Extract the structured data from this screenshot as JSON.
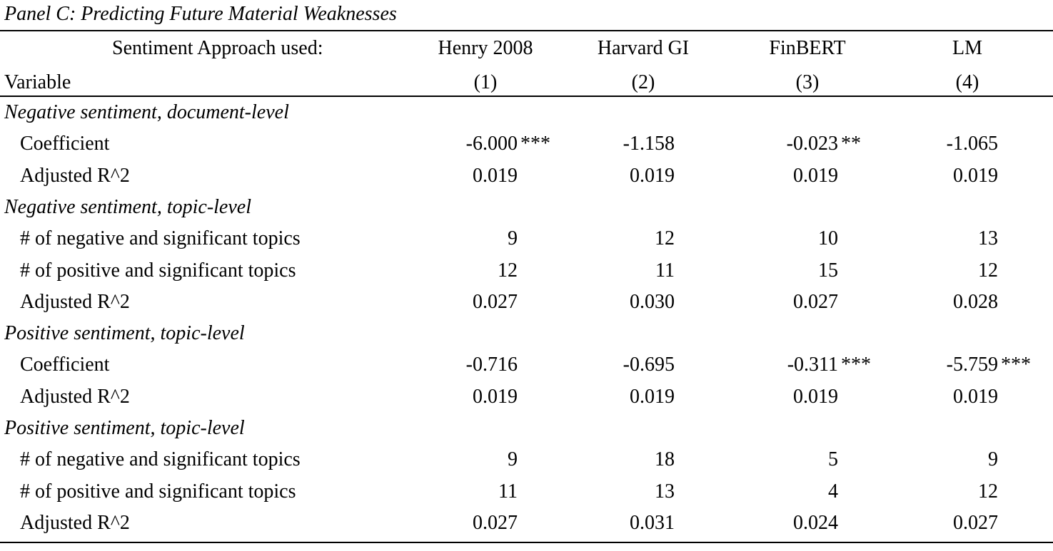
{
  "panel_title": "Panel C: Predicting Future Material Weaknesses",
  "header": {
    "approach_label": "Sentiment Approach used:",
    "variable_label": "Variable",
    "columns": [
      {
        "name": "Henry 2008",
        "number": "(1)"
      },
      {
        "name": "Harvard GI",
        "number": "(2)"
      },
      {
        "name": "FinBERT",
        "number": "(3)"
      },
      {
        "name": "LM",
        "number": "(4)"
      }
    ]
  },
  "sections": [
    {
      "title": "Negative sentiment, document-level",
      "rows": [
        {
          "label": "Coefficient",
          "values": [
            "-6.000",
            "-1.158",
            "-0.023",
            "-1.065"
          ],
          "stars": [
            "***",
            "",
            "**",
            ""
          ]
        },
        {
          "label": "Adjusted R^2",
          "values": [
            "0.019",
            "0.019",
            "0.019",
            "0.019"
          ],
          "stars": [
            "",
            "",
            "",
            ""
          ]
        }
      ]
    },
    {
      "title": "Negative sentiment, topic-level",
      "rows": [
        {
          "label": "# of negative and significant topics",
          "values": [
            "9",
            "12",
            "10",
            "13"
          ],
          "stars": [
            "",
            "",
            "",
            ""
          ]
        },
        {
          "label": "# of positive and significant topics",
          "values": [
            "12",
            "11",
            "15",
            "12"
          ],
          "stars": [
            "",
            "",
            "",
            ""
          ]
        },
        {
          "label": "Adjusted R^2",
          "values": [
            "0.027",
            "0.030",
            "0.027",
            "0.028"
          ],
          "stars": [
            "",
            "",
            "",
            ""
          ]
        }
      ]
    },
    {
      "title": "Positive sentiment, topic-level",
      "rows": [
        {
          "label": "Coefficient",
          "values": [
            "-0.716",
            "-0.695",
            "-0.311",
            "-5.759"
          ],
          "stars": [
            "",
            "",
            "***",
            "***"
          ]
        },
        {
          "label": "Adjusted R^2",
          "values": [
            "0.019",
            "0.019",
            "0.019",
            "0.019"
          ],
          "stars": [
            "",
            "",
            "",
            ""
          ]
        }
      ]
    },
    {
      "title": "Positive sentiment, topic-level",
      "rows": [
        {
          "label": "# of negative and significant topics",
          "values": [
            "9",
            "18",
            "5",
            "9"
          ],
          "stars": [
            "",
            "",
            "",
            ""
          ]
        },
        {
          "label": "# of positive and significant topics",
          "values": [
            "11",
            "13",
            "4",
            "12"
          ],
          "stars": [
            "",
            "",
            "",
            ""
          ]
        },
        {
          "label": "Adjusted R^2",
          "values": [
            "0.027",
            "0.031",
            "0.024",
            "0.027"
          ],
          "stars": [
            "",
            "",
            "",
            ""
          ]
        }
      ]
    }
  ]
}
